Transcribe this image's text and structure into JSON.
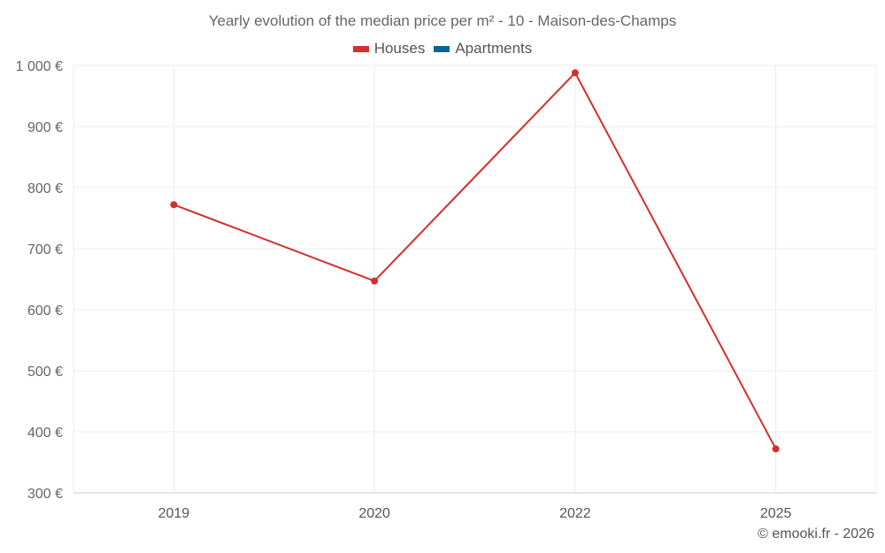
{
  "chart_data": {
    "type": "line",
    "title": "Yearly evolution of the median price per m² - 10 - Maison-des-Champs",
    "categories": [
      "2019",
      "2020",
      "2022",
      "2025"
    ],
    "series": [
      {
        "name": "Houses",
        "color": "#d32f2f",
        "values": [
          772,
          647,
          988,
          372
        ]
      },
      {
        "name": "Apartments",
        "color": "#0a6596",
        "values": [
          null,
          null,
          null,
          null
        ]
      }
    ],
    "ylim": [
      300,
      1000
    ],
    "yticks": [
      300,
      400,
      500,
      600,
      700,
      800,
      900,
      1000
    ],
    "ytick_labels": [
      "300 €",
      "400 €",
      "500 €",
      "600 €",
      "700 €",
      "800 €",
      "900 €",
      "1 000 €"
    ],
    "xlabel": "",
    "ylabel": "",
    "grid": true,
    "legend_position": "top-center"
  },
  "footer": {
    "credit": "© emooki.fr - 2026"
  }
}
